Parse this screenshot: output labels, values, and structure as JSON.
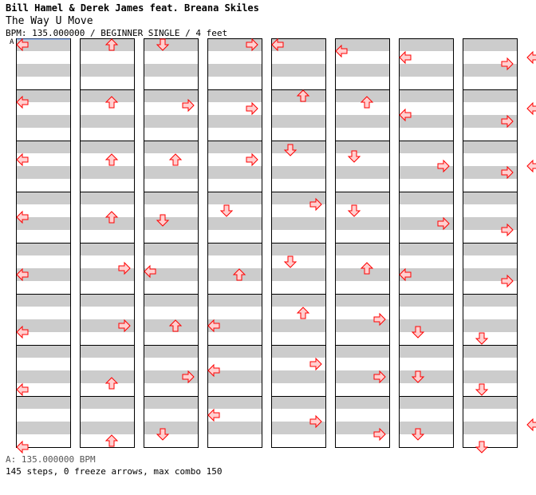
{
  "header": {
    "artist": "Bill Hamel & Derek James feat. Breana Skiles",
    "title": "The Way U Move",
    "bpm_line": "BPM: 135.000000 / BEGINNER SINGLE / 4 feet",
    "marker": "A"
  },
  "footer": {
    "bpm_legend": "A: 135.000000 BPM",
    "stats": "145 steps, 0 freeze arrows, max combo 150"
  },
  "colors": {
    "arrow_fill": "#ffd0d0",
    "arrow_stroke": "#ff0000",
    "stripe": "#cccccc",
    "measure_border": "#000000"
  },
  "chart_data": {
    "type": "step-chart",
    "columns_order": [
      "left",
      "down",
      "up",
      "right"
    ],
    "notes": [
      [
        0,
        0,
        0.0
      ],
      [
        1,
        0,
        0.5
      ],
      [
        2,
        0,
        1.0
      ],
      [
        3,
        0,
        1.5
      ],
      [
        4,
        0,
        2.0
      ],
      [
        5,
        0,
        2.5
      ],
      [
        6,
        0,
        3.0
      ],
      [
        7,
        0,
        3.5
      ],
      [
        0,
        2,
        0.0
      ],
      [
        1,
        2,
        0.5
      ],
      [
        2,
        2,
        1.0
      ],
      [
        3,
        2,
        1.5
      ],
      [
        4,
        3,
        1.5
      ],
      [
        5,
        3,
        2.0
      ],
      [
        6,
        2,
        2.5
      ],
      [
        7,
        2,
        3.0
      ],
      [
        0,
        1,
        0.0
      ],
      [
        1,
        3,
        0.75
      ],
      [
        2,
        2,
        1.0
      ],
      [
        3,
        1,
        1.75
      ],
      [
        4,
        0,
        1.75
      ],
      [
        5,
        2,
        2.0
      ],
      [
        6,
        3,
        2.0
      ],
      [
        7,
        1,
        2.5
      ],
      [
        0,
        3,
        0.0
      ],
      [
        1,
        3,
        1.0
      ],
      [
        2,
        3,
        1.0
      ],
      [
        3,
        1,
        1.0
      ],
      [
        4,
        2,
        2.0
      ],
      [
        5,
        0,
        2.0
      ],
      [
        6,
        0,
        1.5
      ],
      [
        7,
        0,
        1.0
      ],
      [
        0,
        0,
        0.0
      ],
      [
        1,
        2,
        0.0
      ],
      [
        2,
        1,
        0.25
      ],
      [
        3,
        3,
        0.5
      ],
      [
        4,
        1,
        1.0
      ],
      [
        5,
        2,
        1.0
      ],
      [
        6,
        3,
        1.0
      ],
      [
        7,
        3,
        1.5
      ],
      [
        0,
        0,
        0.5
      ],
      [
        1,
        2,
        0.5
      ],
      [
        2,
        1,
        0.75
      ],
      [
        3,
        1,
        1.0
      ],
      [
        4,
        2,
        1.5
      ],
      [
        5,
        3,
        1.5
      ],
      [
        6,
        3,
        2.0
      ],
      [
        7,
        3,
        2.5
      ],
      [
        0,
        0,
        1.0
      ],
      [
        1,
        0,
        1.5
      ],
      [
        2,
        3,
        1.5
      ],
      [
        3,
        3,
        2.0
      ],
      [
        4,
        0,
        2.0
      ],
      [
        5,
        1,
        2.5
      ],
      [
        6,
        1,
        2.0
      ],
      [
        7,
        1,
        2.5
      ],
      [
        0,
        3,
        1.5
      ],
      [
        1,
        3,
        2.0
      ],
      [
        2,
        3,
        2.0
      ],
      [
        3,
        3,
        2.5
      ],
      [
        4,
        3,
        2.5
      ],
      [
        5,
        1,
        3.0
      ],
      [
        6,
        1,
        3.0
      ],
      [
        7,
        1,
        3.5
      ],
      [
        0,
        0,
        1.0
      ],
      [
        1,
        0,
        1.0
      ],
      [
        2,
        0,
        1.5
      ],
      [
        3,
        1,
        1.0
      ],
      [
        4,
        2,
        1.5
      ],
      [
        5,
        2,
        1.5
      ],
      [
        6,
        3,
        1.5
      ],
      [
        7,
        0,
        1.75
      ],
      [
        0,
        1,
        2.0
      ],
      [
        1,
        2,
        2.0
      ],
      [
        2,
        1,
        2.5
      ],
      [
        3,
        1,
        2.5
      ],
      [
        4,
        0,
        2.5
      ],
      [
        5,
        3,
        2.5
      ],
      [
        6,
        2,
        3.0
      ],
      [
        7,
        3,
        3.0
      ],
      [
        0,
        2,
        2.0
      ],
      [
        1,
        2,
        2.5
      ],
      [
        2,
        0,
        3.0
      ],
      [
        3,
        3,
        3.0
      ],
      [
        4,
        3,
        3.0
      ],
      [
        5,
        2,
        3.5
      ],
      [
        6,
        0,
        3.5
      ],
      [
        7,
        2,
        3.5
      ],
      [
        0,
        3,
        2.5
      ],
      [
        1,
        1,
        3.0
      ],
      [
        2,
        2,
        3.0
      ],
      [
        3,
        0,
        3.5
      ],
      [
        4,
        3,
        3.5
      ],
      [
        5,
        3,
        3.75
      ],
      [
        6,
        3,
        3.75
      ],
      [
        7,
        0,
        3.75
      ]
    ]
  }
}
